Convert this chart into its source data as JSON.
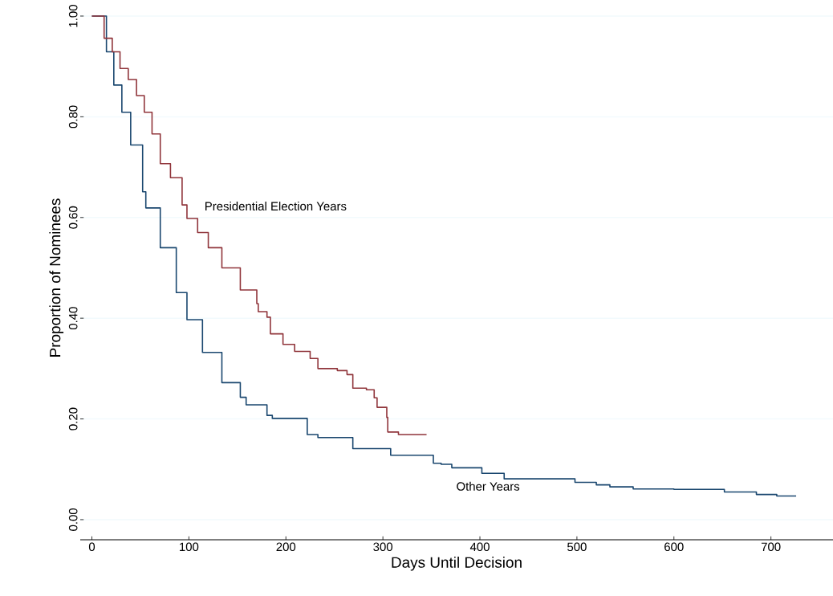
{
  "chart_data": {
    "type": "step",
    "xlabel": "Days Until Decision",
    "ylabel": "Proportion of Nominees",
    "xlim": [
      -12,
      764
    ],
    "ylim": [
      -0.04,
      1.0
    ],
    "xticks": [
      0,
      100,
      200,
      300,
      400,
      500,
      600,
      700
    ],
    "yticks": [
      {
        "value": 0,
        "label": "0.00"
      },
      {
        "value": 0.2,
        "label": "0.20"
      },
      {
        "value": 0.4,
        "label": "0.40"
      },
      {
        "value": 0.6,
        "label": "0.60"
      },
      {
        "value": 0.8,
        "label": "0.80"
      },
      {
        "value": 1.0,
        "label": "1.00"
      }
    ],
    "grid": "y",
    "series": [
      {
        "name": "Other Years",
        "color": "#1a476f",
        "x": [
          0,
          15,
          22.6,
          30.9,
          40,
          52.3,
          55.6,
          70.5,
          87,
          98,
          114,
          134,
          153,
          159,
          180.5,
          186,
          222,
          233,
          269,
          308,
          352,
          360,
          371,
          402,
          425,
          465,
          498,
          520,
          534,
          558,
          600,
          641,
          652,
          683,
          685,
          705,
          706,
          726
        ],
        "values": [
          1.0,
          0.929,
          0.863,
          0.809,
          0.744,
          0.651,
          0.619,
          0.54,
          0.451,
          0.397,
          0.332,
          0.272,
          0.243,
          0.228,
          0.207,
          0.201,
          0.169,
          0.163,
          0.141,
          0.128,
          0.112,
          0.11,
          0.103,
          0.092,
          0.081,
          0.081,
          0.074,
          0.069,
          0.065,
          0.061,
          0.06,
          0.06,
          0.055,
          0.055,
          0.05,
          0.05,
          0.047,
          0.047
        ]
      },
      {
        "name": "Presidential Election Years",
        "color": "#90353b",
        "x": [
          0,
          12.6,
          21,
          29,
          37.5,
          46,
          54,
          62,
          70.5,
          81,
          93,
          98,
          109,
          120,
          134,
          153,
          170,
          171.5,
          180.5,
          184,
          197,
          203,
          209,
          225,
          233,
          253,
          263,
          269,
          283,
          291,
          294,
          304,
          305,
          316,
          345
        ],
        "values": [
          1.0,
          0.956,
          0.929,
          0.896,
          0.874,
          0.842,
          0.809,
          0.766,
          0.707,
          0.679,
          0.625,
          0.598,
          0.57,
          0.54,
          0.5,
          0.456,
          0.429,
          0.413,
          0.402,
          0.369,
          0.348,
          0.348,
          0.334,
          0.32,
          0.3,
          0.296,
          0.288,
          0.261,
          0.258,
          0.242,
          0.223,
          0.203,
          0.174,
          0.169,
          0.169
        ]
      }
    ]
  }
}
